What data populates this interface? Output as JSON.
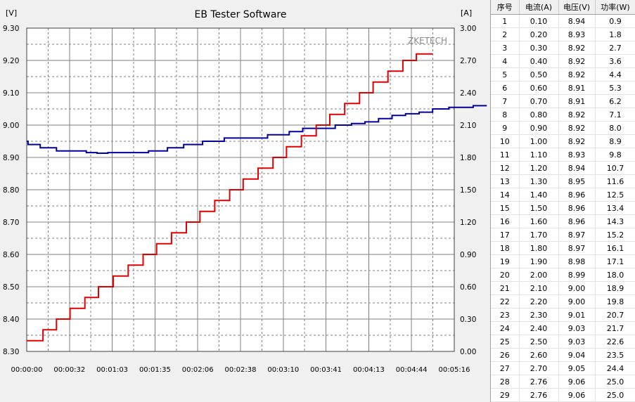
{
  "chart_data": {
    "type": "line",
    "title": "EB Tester Software",
    "watermark": "ZKETECH",
    "left_axis": {
      "unit": "[V]",
      "range": [
        8.3,
        9.3
      ],
      "ticks": [
        "9.30",
        "9.20",
        "9.10",
        "9.00",
        "8.90",
        "8.80",
        "8.70",
        "8.60",
        "8.50",
        "8.40",
        "8.30"
      ]
    },
    "right_axis": {
      "unit": "[A]",
      "range": [
        0,
        3
      ],
      "ticks": [
        "3.00",
        "2.70",
        "2.40",
        "2.10",
        "1.80",
        "1.50",
        "1.20",
        "0.90",
        "0.60",
        "0.30",
        "0.00"
      ]
    },
    "x_axis": {
      "range_seconds": [
        0,
        316
      ],
      "ticks": [
        "00:00:00",
        "00:00:32",
        "00:01:03",
        "00:01:35",
        "00:02:06",
        "00:02:38",
        "00:03:10",
        "00:03:41",
        "00:04:13",
        "00:04:44",
        "00:05:16"
      ]
    },
    "grid": true,
    "series": [
      {
        "color": "#0000a0",
        "axis": "left",
        "points": [
          [
            0,
            8.95
          ],
          [
            1,
            8.94
          ],
          [
            10,
            8.93
          ],
          [
            22,
            8.92
          ],
          [
            44,
            8.915
          ],
          [
            52,
            8.913
          ],
          [
            60,
            8.915
          ],
          [
            90,
            8.92
          ],
          [
            104,
            8.93
          ],
          [
            116,
            8.94
          ],
          [
            130,
            8.95
          ],
          [
            146,
            8.96
          ],
          [
            168,
            8.96
          ],
          [
            178,
            8.97
          ],
          [
            194,
            8.98
          ],
          [
            204,
            8.99
          ],
          [
            216,
            8.99
          ],
          [
            228,
            9.0
          ],
          [
            240,
            9.005
          ],
          [
            250,
            9.01
          ],
          [
            260,
            9.02
          ],
          [
            270,
            9.03
          ],
          [
            280,
            9.035
          ],
          [
            290,
            9.04
          ],
          [
            300,
            9.05
          ],
          [
            312,
            9.055
          ],
          [
            330,
            9.06
          ],
          [
            340,
            9.06
          ]
        ]
      },
      {
        "color": "#e00000",
        "axis": "right",
        "points": [
          [
            0,
            0.1
          ],
          [
            12,
            0.2
          ],
          [
            22,
            0.3
          ],
          [
            32,
            0.4
          ],
          [
            43,
            0.5
          ],
          [
            53,
            0.6
          ],
          [
            64,
            0.7
          ],
          [
            75,
            0.8
          ],
          [
            86,
            0.9
          ],
          [
            96,
            1.0
          ],
          [
            107,
            1.1
          ],
          [
            118,
            1.2
          ],
          [
            128,
            1.3
          ],
          [
            139,
            1.4
          ],
          [
            150,
            1.5
          ],
          [
            160,
            1.6
          ],
          [
            171,
            1.7
          ],
          [
            182,
            1.8
          ],
          [
            192,
            1.9
          ],
          [
            203,
            2.0
          ],
          [
            214,
            2.1
          ],
          [
            224,
            2.2
          ],
          [
            235,
            2.3
          ],
          [
            246,
            2.4
          ],
          [
            256,
            2.5
          ],
          [
            267,
            2.6
          ],
          [
            278,
            2.7
          ],
          [
            288,
            2.76
          ],
          [
            300,
            2.76
          ]
        ]
      }
    ]
  },
  "table": {
    "headers": [
      "序号",
      "电流(A)",
      "电压(V)",
      "功率(W)"
    ],
    "rows": [
      [
        "1",
        "0.10",
        "8.94",
        "0.9"
      ],
      [
        "2",
        "0.20",
        "8.93",
        "1.8"
      ],
      [
        "3",
        "0.30",
        "8.92",
        "2.7"
      ],
      [
        "4",
        "0.40",
        "8.92",
        "3.6"
      ],
      [
        "5",
        "0.50",
        "8.92",
        "4.4"
      ],
      [
        "6",
        "0.60",
        "8.91",
        "5.3"
      ],
      [
        "7",
        "0.70",
        "8.91",
        "6.2"
      ],
      [
        "8",
        "0.80",
        "8.92",
        "7.1"
      ],
      [
        "9",
        "0.90",
        "8.92",
        "8.0"
      ],
      [
        "10",
        "1.00",
        "8.92",
        "8.9"
      ],
      [
        "11",
        "1.10",
        "8.93",
        "9.8"
      ],
      [
        "12",
        "1.20",
        "8.94",
        "10.7"
      ],
      [
        "13",
        "1.30",
        "8.95",
        "11.6"
      ],
      [
        "14",
        "1.40",
        "8.96",
        "12.5"
      ],
      [
        "15",
        "1.50",
        "8.96",
        "13.4"
      ],
      [
        "16",
        "1.60",
        "8.96",
        "14.3"
      ],
      [
        "17",
        "1.70",
        "8.97",
        "15.2"
      ],
      [
        "18",
        "1.80",
        "8.97",
        "16.1"
      ],
      [
        "19",
        "1.90",
        "8.98",
        "17.1"
      ],
      [
        "20",
        "2.00",
        "8.99",
        "18.0"
      ],
      [
        "21",
        "2.10",
        "9.00",
        "18.9"
      ],
      [
        "22",
        "2.20",
        "9.00",
        "19.8"
      ],
      [
        "23",
        "2.30",
        "9.01",
        "20.7"
      ],
      [
        "24",
        "2.40",
        "9.03",
        "21.7"
      ],
      [
        "25",
        "2.50",
        "9.03",
        "22.6"
      ],
      [
        "26",
        "2.60",
        "9.04",
        "23.5"
      ],
      [
        "27",
        "2.70",
        "9.05",
        "24.4"
      ],
      [
        "28",
        "2.76",
        "9.06",
        "25.0"
      ],
      [
        "29",
        "2.76",
        "9.06",
        "25.0"
      ]
    ]
  }
}
